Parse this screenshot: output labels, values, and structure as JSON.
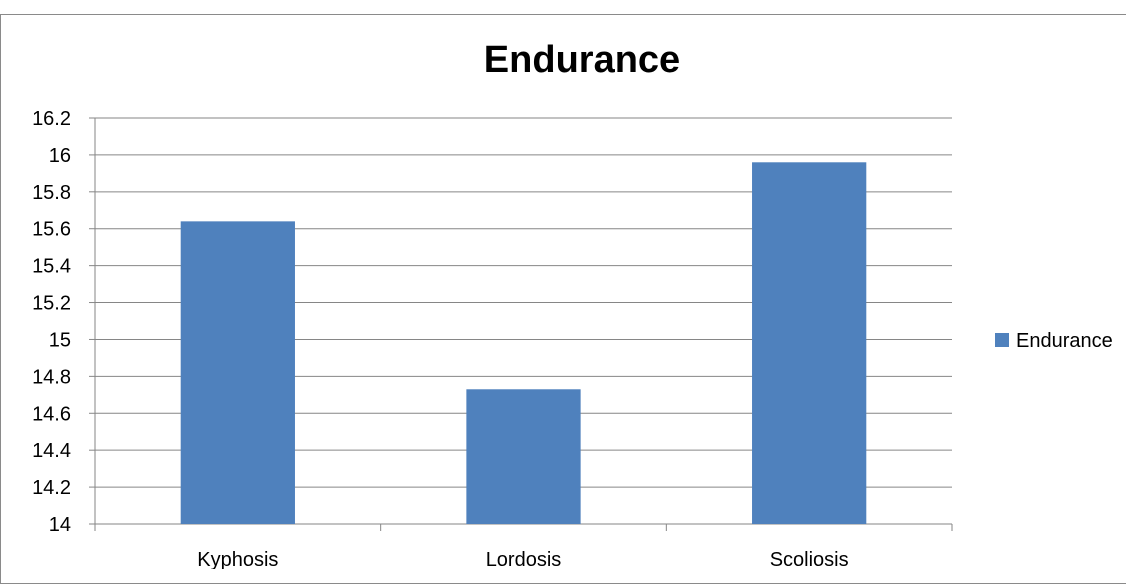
{
  "chart_data": {
    "type": "bar",
    "title": "Endurance",
    "xlabel": "",
    "ylabel": "",
    "categories": [
      "Kyphosis",
      "Lordosis",
      "Scoliosis"
    ],
    "series": [
      {
        "name": "Endurance",
        "values": [
          15.64,
          14.73,
          15.96
        ],
        "color": "#4f81bd"
      }
    ],
    "ylim": [
      14,
      16.2
    ],
    "yticks": [
      "14",
      "14.2",
      "14.4",
      "14.6",
      "14.8",
      "15",
      "15.2",
      "15.4",
      "15.6",
      "15.8",
      "16",
      "16.2"
    ],
    "grid": true,
    "legend": "right"
  }
}
